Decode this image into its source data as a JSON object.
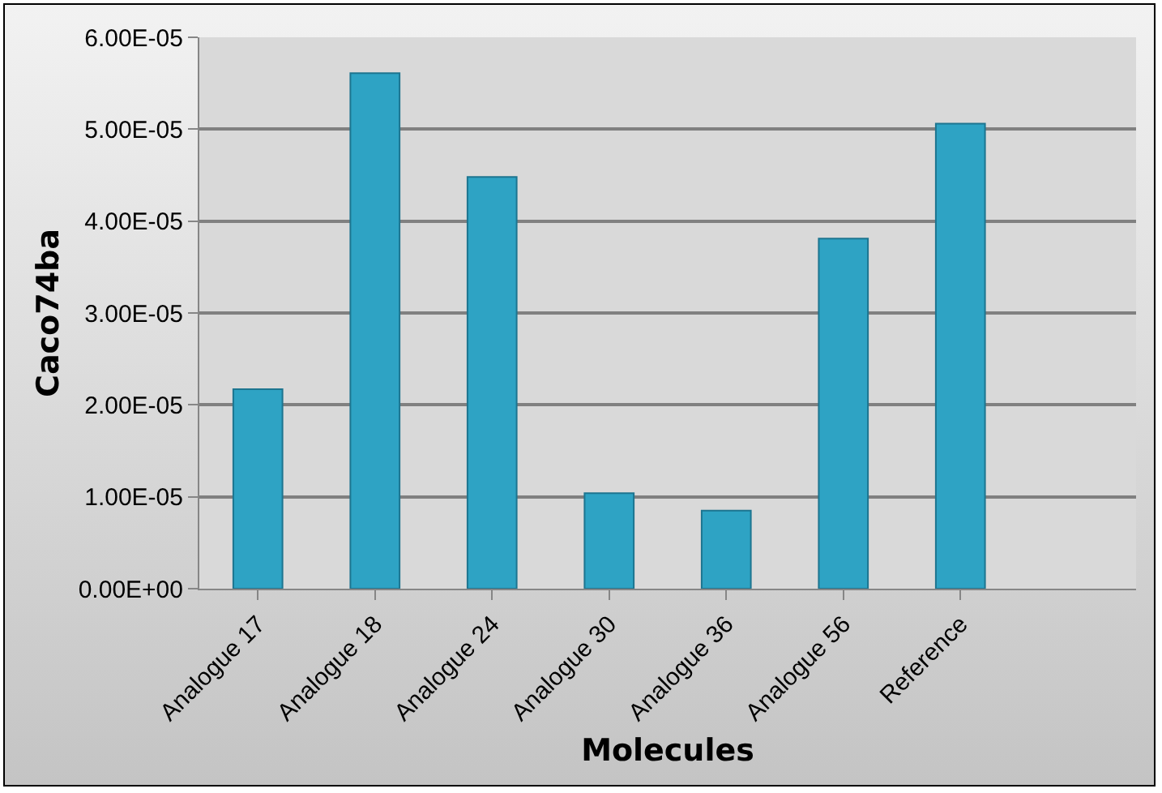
{
  "chart_data": {
    "type": "bar",
    "xlabel": "Molecules",
    "ylabel": "Caco74ba",
    "categories": [
      "Analogue 17",
      "Analogue 18",
      "Analogue 24",
      "Analogue 30",
      "Analogue 36",
      "Analogue 56",
      "Reference",
      null
    ],
    "values": [
      2.17e-05,
      5.61e-05,
      4.48e-05,
      1.04e-05,
      8.5e-06,
      3.81e-05,
      5.06e-05,
      null
    ],
    "color": "#2ea3c4",
    "ylim": [
      0,
      6e-05
    ],
    "yticks": [
      {
        "value": 0,
        "label": "0.00E+00"
      },
      {
        "value": 1e-05,
        "label": "1.00E-05"
      },
      {
        "value": 2e-05,
        "label": "2.00E-05"
      },
      {
        "value": 3e-05,
        "label": "3.00E-05"
      },
      {
        "value": 4e-05,
        "label": "4.00E-05"
      },
      {
        "value": 5e-05,
        "label": "5.00E-05"
      },
      {
        "value": 6e-05,
        "label": "6.00E-05"
      }
    ],
    "grid": "y"
  }
}
